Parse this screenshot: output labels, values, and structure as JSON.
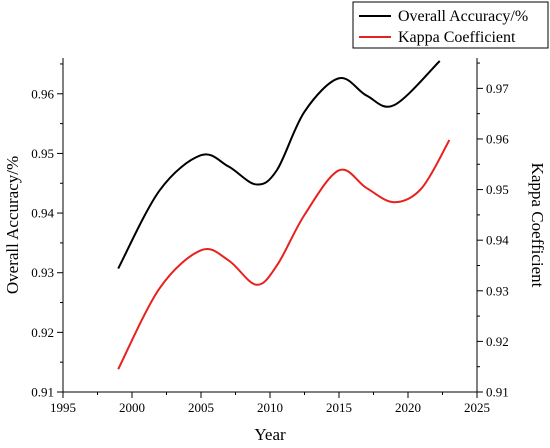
{
  "chart_data": {
    "type": "line",
    "xlabel": "Year",
    "ylabel_left": "Overall Accuracy/%",
    "ylabel_right": "Kappa Coefficient",
    "xlim": [
      1995,
      2025
    ],
    "ylim_left": [
      0.91,
      0.966
    ],
    "ylim_right": [
      0.91,
      0.976
    ],
    "xticks": [
      "1995",
      "2000",
      "2005",
      "2010",
      "2015",
      "2020",
      "2025"
    ],
    "yticks_left": [
      "0.91",
      "0.92",
      "0.93",
      "0.94",
      "0.95",
      "0.96"
    ],
    "yticks_right": [
      "0.91",
      "0.92",
      "0.93",
      "0.94",
      "0.95",
      "0.96",
      "0.97"
    ],
    "grid": false,
    "legend": "top-right",
    "series": [
      {
        "name": "Overall Accuracy/%",
        "axis": "left",
        "color": "#000000",
        "x": [
          1999,
          2002,
          2005,
          2007,
          2009,
          2010.5,
          2012.5,
          2015,
          2017,
          2019,
          2022.3
        ],
        "values": [
          0.9307,
          0.9438,
          0.9497,
          0.9478,
          0.9448,
          0.9472,
          0.957,
          0.9626,
          0.9597,
          0.9581,
          0.9655
        ]
      },
      {
        "name": "Kappa Coefficient",
        "axis": "right",
        "color": "#e8211e",
        "x": [
          1999,
          2002,
          2005,
          2007,
          2009,
          2010.5,
          2012.5,
          2015,
          2017,
          2019,
          2021,
          2023
        ],
        "values": [
          0.9145,
          0.9305,
          0.938,
          0.936,
          0.9312,
          0.935,
          0.945,
          0.9538,
          0.9503,
          0.9475,
          0.9503,
          0.9598
        ]
      }
    ]
  }
}
